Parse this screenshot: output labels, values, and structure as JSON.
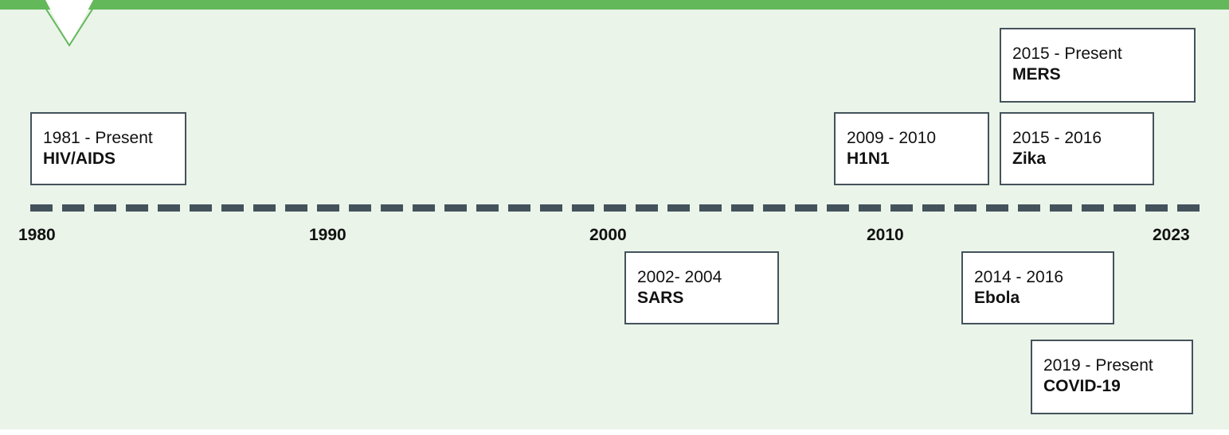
{
  "axis": {
    "ticks": [
      "1980",
      "1990",
      "2000",
      "2010",
      "2023"
    ]
  },
  "events": [
    {
      "dates": "1981 - Present",
      "name": "HIV/AIDS"
    },
    {
      "dates": "2002- 2004",
      "name": "SARS"
    },
    {
      "dates": "2009 - 2010",
      "name": "H1N1"
    },
    {
      "dates": "2014 - 2016",
      "name": "Ebola"
    },
    {
      "dates": "2015 - Present",
      "name": "MERS"
    },
    {
      "dates": "2015 - 2016",
      "name": "Zika"
    },
    {
      "dates": "2019 - Present",
      "name": "COVID-19"
    }
  ],
  "colors": {
    "background": "#eaf4e9",
    "accent": "#63b85a",
    "line": "#44525c",
    "card": "#ffffff"
  }
}
